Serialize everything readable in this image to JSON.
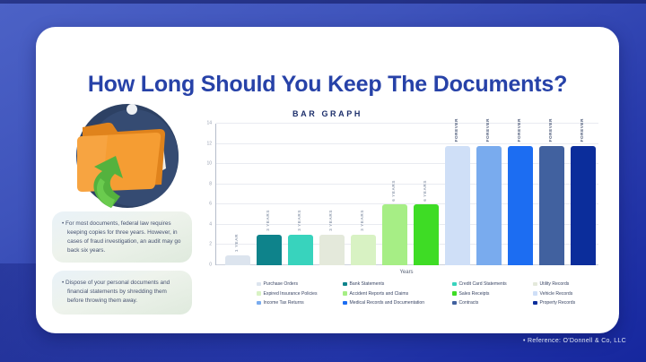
{
  "page": {
    "title": "How Long Should You Keep The Documents?",
    "subtitle": "BAR GRAPH",
    "reference": "• Reference: O'Donnell & Co, LLC",
    "accent_color": "#2742a8",
    "background_color": "#2a3dad"
  },
  "icon": {
    "name": "folder-with-refresh-arrow-3d-icon"
  },
  "notes": [
    {
      "text": "• For most documents, federal law requires keeping copies for three years. However, in cases of fraud investigation, an audit may go back six years."
    },
    {
      "text": "• Dispose of your personal documents and financial statements by shredding them before throwing them away."
    }
  ],
  "chart_data": {
    "type": "bar",
    "title": "BAR GRAPH",
    "xlabel": "Years",
    "ylabel": "",
    "ylim": [
      0,
      14
    ],
    "yticks": [
      0,
      2,
      4,
      6,
      8,
      10,
      12,
      14
    ],
    "grid": true,
    "legend_position": "bottom",
    "bars": [
      {
        "name": "Purchase Orders",
        "duration": "1 YEAR",
        "value": 1,
        "color": "#dce4ee",
        "label_color": "#9aa4b5"
      },
      {
        "name": "Bank Statements",
        "duration": "3 YEARS",
        "value": 3,
        "color": "#0e838b",
        "label_color": "#9aa4b5"
      },
      {
        "name": "Credit Card Statements",
        "duration": "3 YEARS",
        "value": 3,
        "color": "#38d3bd",
        "label_color": "#9aa4b5"
      },
      {
        "name": "Utility Records",
        "duration": "3 YEARS",
        "value": 3,
        "color": "#e4e9db",
        "label_color": "#9aa4b5"
      },
      {
        "name": "Expired Insurance Policies",
        "duration": "3 YEARS",
        "value": 3,
        "color": "#d8f2c3",
        "label_color": "#9aa4b5"
      },
      {
        "name": "Accident Reports and Claims",
        "duration": "6 YEARS",
        "value": 6,
        "color": "#a6ee85",
        "label_color": "#9aa4b5"
      },
      {
        "name": "Sales Receipts",
        "duration": "6 YEARS",
        "value": 6,
        "color": "#3edc25",
        "label_color": "#9aa4b5"
      },
      {
        "name": "Vehicle Records",
        "duration": "FOREVER",
        "value": 11.8,
        "color": "#cfdff7",
        "label_color": "#55627f"
      },
      {
        "name": "Income Tax Returns",
        "duration": "FOREVER",
        "value": 11.8,
        "color": "#79abee",
        "label_color": "#55627f"
      },
      {
        "name": "Medical Records and Documentation",
        "duration": "FOREVER",
        "value": 11.8,
        "color": "#1c6df2",
        "label_color": "#55627f"
      },
      {
        "name": "Contracts",
        "duration": "FOREVER",
        "value": 11.8,
        "color": "#41619f",
        "label_color": "#55627f"
      },
      {
        "name": "Property Records",
        "duration": "FOREVER",
        "value": 11.8,
        "color": "#0b2d9b",
        "label_color": "#55627f"
      }
    ]
  }
}
